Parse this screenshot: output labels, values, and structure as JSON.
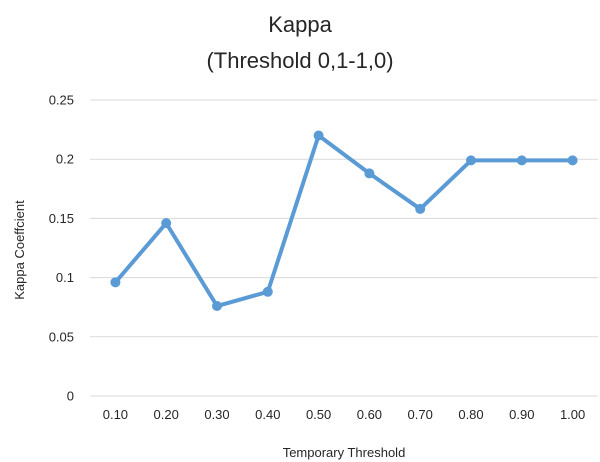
{
  "chart_data": {
    "type": "line",
    "title": "Kappa",
    "subtitle": "(Threshold 0,1-1,0)",
    "xlabel": "Temporary Threshold",
    "ylabel": "Kappa Coeffcient",
    "categories": [
      "0.10",
      "0.20",
      "0.30",
      "0.40",
      "0.50",
      "0.60",
      "0.70",
      "0.80",
      "0.90",
      "1.00"
    ],
    "series": [
      {
        "values": [
          0.096,
          0.146,
          0.076,
          0.088,
          0.22,
          0.188,
          0.158,
          0.199,
          0.199,
          0.199
        ]
      }
    ],
    "ylim": [
      0,
      0.25
    ],
    "yticks": [
      "0",
      "0.05",
      "0.1",
      "0.15",
      "0.2",
      "0.25"
    ],
    "grid": true,
    "legend": "none",
    "colors": {
      "series": "#5B9BD5",
      "grid": "#D9D9D9",
      "text": "#262626"
    }
  }
}
